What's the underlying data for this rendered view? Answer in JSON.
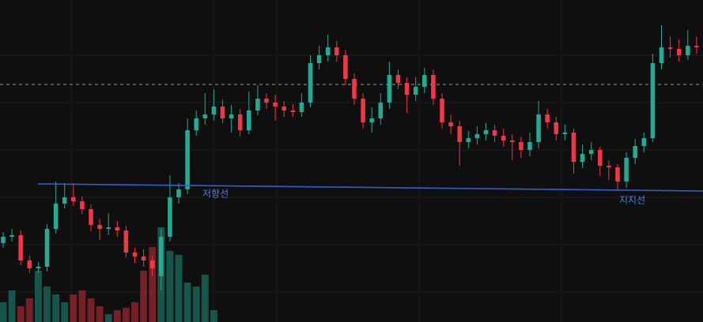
{
  "chart_data": {
    "type": "candlestick",
    "xlim": [
      -0.36,
      79.73
    ],
    "ylim": [
      0,
      408
    ],
    "vlim": [
      0,
      408
    ],
    "up_color": "#22ab94",
    "down_color": "#f23645",
    "open": [
      100,
      108,
      110,
      78,
      68,
      70,
      118,
      150,
      158,
      153,
      143,
      123,
      118,
      120,
      116,
      88,
      83,
      78,
      58,
      108,
      158,
      168,
      243,
      258,
      263,
      273,
      258,
      263,
      243,
      268,
      283,
      278,
      273,
      268,
      266,
      278,
      328,
      338,
      348,
      338,
      308,
      283,
      253,
      258,
      278,
      313,
      303,
      288,
      298,
      313,
      283,
      253,
      248,
      228,
      233,
      238,
      243,
      236,
      230,
      228,
      218,
      228,
      263,
      253,
      238,
      240,
      203,
      213,
      218,
      198,
      196,
      178,
      208,
      223,
      233,
      328,
      348,
      346,
      338,
      350
    ],
    "high": [
      114,
      118,
      116,
      84,
      76,
      124,
      178,
      176,
      176,
      159,
      149,
      131,
      138,
      128,
      122,
      94,
      92,
      84,
      118,
      186,
      176,
      258,
      268,
      290,
      295,
      282,
      275,
      270,
      292,
      300,
      290,
      288,
      280,
      276,
      290,
      338,
      350,
      364,
      356,
      345,
      315,
      290,
      272,
      290,
      330,
      320,
      310,
      310,
      322,
      320,
      290,
      262,
      255,
      242,
      248,
      252,
      250,
      245,
      238,
      235,
      240,
      280,
      270,
      260,
      250,
      245,
      225,
      228,
      222,
      205,
      200,
      215,
      232,
      240,
      340,
      376,
      362,
      358,
      370,
      362
    ],
    "low": [
      94,
      102,
      72,
      62,
      62,
      64,
      112,
      144,
      147,
      137,
      115,
      104,
      110,
      108,
      82,
      75,
      70,
      58,
      40,
      102,
      150,
      162,
      236,
      250,
      255,
      252,
      240,
      235,
      238,
      262,
      270,
      255,
      260,
      260,
      260,
      272,
      320,
      330,
      330,
      300,
      275,
      245,
      240,
      250,
      270,
      295,
      265,
      280,
      290,
      275,
      245,
      238,
      198,
      220,
      225,
      230,
      228,
      222,
      205,
      208,
      210,
      220,
      245,
      230,
      230,
      188,
      195,
      205,
      185,
      180,
      166,
      170,
      200,
      215,
      228,
      320,
      335,
      330,
      332,
      340
    ],
    "close": [
      108,
      110,
      78,
      68,
      70,
      118,
      150,
      158,
      153,
      143,
      123,
      118,
      120,
      116,
      88,
      83,
      78,
      68,
      108,
      158,
      168,
      243,
      258,
      263,
      273,
      258,
      263,
      243,
      268,
      283,
      278,
      273,
      268,
      266,
      278,
      328,
      338,
      348,
      338,
      308,
      283,
      253,
      258,
      278,
      313,
      303,
      288,
      298,
      313,
      283,
      253,
      248,
      228,
      233,
      238,
      243,
      236,
      230,
      228,
      218,
      228,
      263,
      253,
      238,
      240,
      203,
      213,
      218,
      198,
      196,
      178,
      208,
      223,
      233,
      328,
      348,
      346,
      338,
      350,
      348
    ],
    "volume": [
      25,
      40,
      20,
      30,
      65,
      45,
      35,
      25,
      35,
      40,
      30,
      20,
      10,
      15,
      18,
      25,
      65,
      95,
      120,
      90,
      85,
      50,
      45,
      60,
      15,
      0,
      0,
      0,
      0,
      0,
      0,
      0,
      0,
      0,
      0,
      0,
      0,
      0,
      0,
      0,
      0,
      0,
      0,
      0,
      0,
      0,
      0,
      0,
      0,
      0,
      0,
      0,
      0,
      0,
      0,
      0,
      0,
      0,
      0,
      0,
      0,
      0,
      0,
      0,
      0,
      0,
      0,
      0,
      0,
      0,
      0,
      0,
      0,
      0,
      0,
      0,
      0,
      0,
      0,
      0
    ],
    "reference_line": 301,
    "trend_line": {
      "x": [
        3.96,
        79.73
      ],
      "values": [
        175,
        166
      ],
      "color": "#2f5fd8"
    },
    "annotations": [
      "저항선",
      "지지선"
    ]
  }
}
